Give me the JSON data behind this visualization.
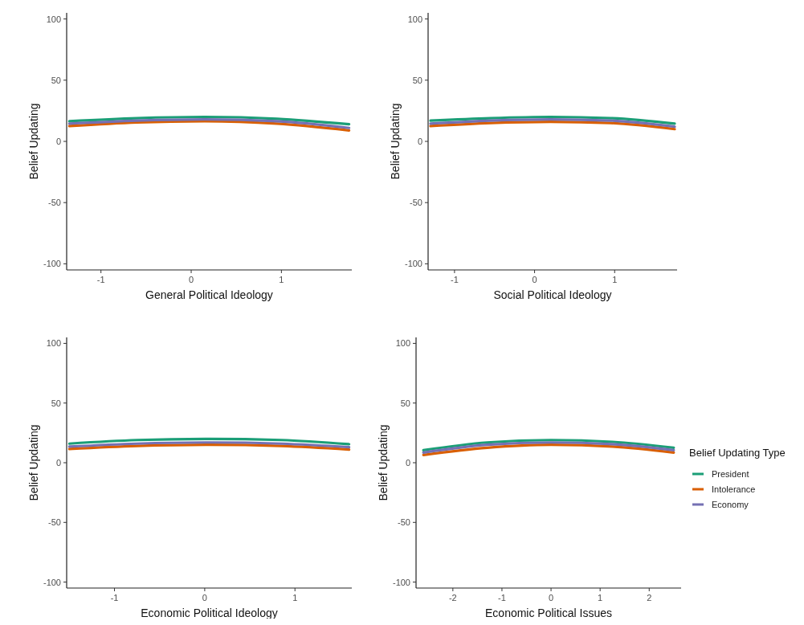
{
  "chart_data": [
    {
      "type": "line",
      "xlabel": "General Political Ideology",
      "ylabel": "Belief Updating",
      "xlim": [
        -1.38,
        1.78
      ],
      "ylim": [
        -105,
        105
      ],
      "xticks": [
        -1,
        0,
        1
      ],
      "yticks": [
        -100,
        -50,
        0,
        50,
        100
      ],
      "grid": false,
      "legend": false,
      "series": [
        {
          "color": "#1b9e77",
          "x": [
            -1.35,
            -0.6,
            0.15,
            0.95,
            1.75
          ],
          "values": [
            16.5,
            19,
            20,
            18.5,
            14
          ]
        },
        {
          "color": "#d95f02",
          "x": [
            -1.35,
            -0.6,
            0.15,
            0.95,
            1.75
          ],
          "values": [
            12.5,
            15.5,
            16.5,
            14.5,
            9
          ]
        },
        {
          "color": "#7570b3",
          "x": [
            -1.35,
            -0.6,
            0.15,
            0.95,
            1.75
          ],
          "values": [
            14.5,
            17,
            18,
            16.5,
            11
          ]
        }
      ]
    },
    {
      "type": "line",
      "xlabel": "Social Political Ideology",
      "ylabel": "Belief Updating",
      "xlim": [
        -1.33,
        1.78
      ],
      "ylim": [
        -105,
        105
      ],
      "xticks": [
        -1,
        0,
        1
      ],
      "yticks": [
        -100,
        -50,
        0,
        50,
        100
      ],
      "grid": false,
      "legend": false,
      "series": [
        {
          "color": "#1b9e77",
          "x": [
            -1.3,
            -0.55,
            0.2,
            0.95,
            1.75
          ],
          "values": [
            17,
            19,
            20,
            19,
            14.5
          ]
        },
        {
          "color": "#d95f02",
          "x": [
            -1.3,
            -0.55,
            0.2,
            0.95,
            1.75
          ],
          "values": [
            12.5,
            15,
            16,
            15,
            10
          ]
        },
        {
          "color": "#7570b3",
          "x": [
            -1.3,
            -0.55,
            0.2,
            0.95,
            1.75
          ],
          "values": [
            14.5,
            17,
            18,
            17,
            12
          ]
        }
      ]
    },
    {
      "type": "line",
      "xlabel": "Economic Political Ideology",
      "ylabel": "Belief Updating",
      "xlim": [
        -1.53,
        1.63
      ],
      "ylim": [
        -105,
        105
      ],
      "xticks": [
        -1,
        0,
        1
      ],
      "yticks": [
        -100,
        -50,
        0,
        50,
        100
      ],
      "grid": false,
      "legend": false,
      "series": [
        {
          "color": "#1b9e77",
          "x": [
            -1.5,
            -0.75,
            0.05,
            0.85,
            1.6
          ],
          "values": [
            16,
            19,
            20,
            19,
            15.5
          ]
        },
        {
          "color": "#d95f02",
          "x": [
            -1.5,
            -0.75,
            0.05,
            0.85,
            1.6
          ],
          "values": [
            11.5,
            14,
            15,
            14,
            11
          ]
        },
        {
          "color": "#7570b3",
          "x": [
            -1.5,
            -0.75,
            0.05,
            0.85,
            1.6
          ],
          "values": [
            13.5,
            16,
            17,
            16,
            13
          ]
        }
      ]
    },
    {
      "type": "line",
      "xlabel": "Economic Political Issues",
      "ylabel": "Belief Updating",
      "legend_title": "Belief Updating Type",
      "xlim": [
        -2.75,
        2.65
      ],
      "ylim": [
        -105,
        105
      ],
      "xticks": [
        -2,
        -1,
        0,
        1,
        2
      ],
      "yticks": [
        -100,
        -50,
        0,
        50,
        100
      ],
      "grid": false,
      "legend": "right",
      "series": [
        {
          "name": "President",
          "color": "#1b9e77",
          "x": [
            -2.6,
            -1.3,
            0,
            1.25,
            2.5
          ],
          "values": [
            10.5,
            17,
            19,
            17.5,
            12.5
          ]
        },
        {
          "name": "Intolerance",
          "color": "#d95f02",
          "x": [
            -2.6,
            -1.3,
            0,
            1.25,
            2.5
          ],
          "values": [
            6.5,
            12.5,
            15,
            13.5,
            8.5
          ]
        },
        {
          "name": "Economy",
          "color": "#7570b3",
          "x": [
            -2.6,
            -1.3,
            0,
            1.25,
            2.5
          ],
          "values": [
            8.5,
            15,
            17,
            15.5,
            10.5
          ]
        }
      ]
    }
  ]
}
